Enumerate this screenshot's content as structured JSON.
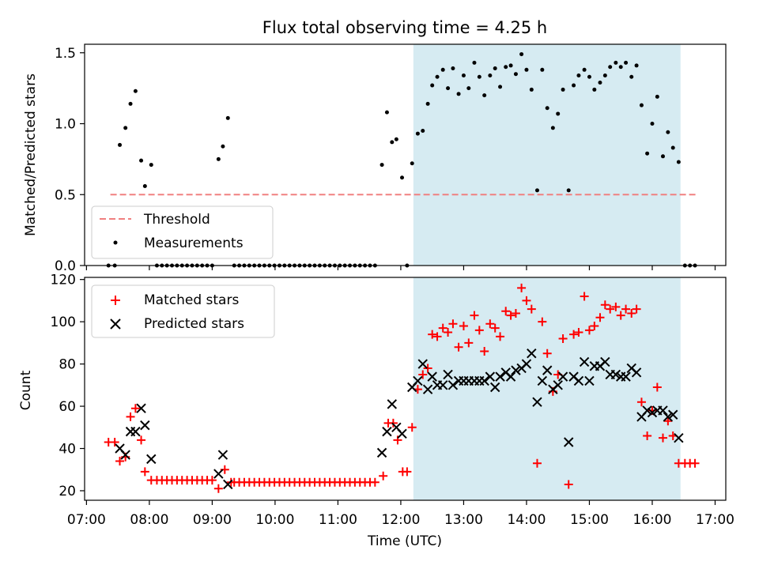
{
  "chart_data": {
    "title": "Flux total observing time = 4.25 h",
    "xlabel": "Time (UTC)",
    "x_unit": "hours UTC",
    "xlim": [
      6.97,
      17.17
    ],
    "xticks": [
      7,
      8,
      9,
      10,
      11,
      12,
      13,
      14,
      15,
      16,
      17
    ],
    "xtick_labels": [
      "07:00",
      "08:00",
      "09:00",
      "10:00",
      "11:00",
      "12:00",
      "13:00",
      "14:00",
      "15:00",
      "16:00",
      "17:00"
    ],
    "shaded_span": [
      12.2,
      16.45
    ],
    "top": {
      "type": "scatter",
      "ylabel": "Matched/Predicted stars",
      "ylim": [
        0,
        1.56
      ],
      "yticks": [
        0.0,
        0.5,
        1.0,
        1.5
      ],
      "ytick_labels": [
        "0.0",
        "0.5",
        "1.0",
        "1.5"
      ],
      "threshold": {
        "label": "Threshold",
        "value": 0.5,
        "x": [
          7.38,
          16.7
        ],
        "color": "#f08080"
      },
      "measurement_label": "Measurements",
      "legend_position": "lower-left",
      "measurements": [
        [
          7.35,
          0
        ],
        [
          7.45,
          0
        ],
        [
          7.53,
          0.85
        ],
        [
          7.62,
          0.97
        ],
        [
          7.7,
          1.14
        ],
        [
          7.78,
          1.23
        ],
        [
          7.87,
          0.74
        ],
        [
          7.93,
          0.56
        ],
        [
          8.03,
          0.71
        ],
        [
          8.12,
          0
        ],
        [
          8.2,
          0
        ],
        [
          8.28,
          0
        ],
        [
          8.36,
          0
        ],
        [
          8.44,
          0
        ],
        [
          8.52,
          0
        ],
        [
          8.6,
          0
        ],
        [
          8.68,
          0
        ],
        [
          8.76,
          0
        ],
        [
          8.84,
          0
        ],
        [
          8.92,
          0
        ],
        [
          9.0,
          0
        ],
        [
          9.1,
          0.75
        ],
        [
          9.17,
          0.84
        ],
        [
          9.25,
          1.04
        ],
        [
          9.35,
          0
        ],
        [
          9.43,
          0
        ],
        [
          9.51,
          0
        ],
        [
          9.59,
          0
        ],
        [
          9.67,
          0
        ],
        [
          9.75,
          0
        ],
        [
          9.83,
          0
        ],
        [
          9.91,
          0
        ],
        [
          9.99,
          0
        ],
        [
          10.07,
          0
        ],
        [
          10.15,
          0
        ],
        [
          10.23,
          0
        ],
        [
          10.31,
          0
        ],
        [
          10.39,
          0
        ],
        [
          10.47,
          0
        ],
        [
          10.55,
          0
        ],
        [
          10.63,
          0
        ],
        [
          10.71,
          0
        ],
        [
          10.79,
          0
        ],
        [
          10.87,
          0
        ],
        [
          10.95,
          0
        ],
        [
          11.03,
          0
        ],
        [
          11.11,
          0
        ],
        [
          11.19,
          0
        ],
        [
          11.27,
          0
        ],
        [
          11.35,
          0
        ],
        [
          11.43,
          0
        ],
        [
          11.51,
          0
        ],
        [
          11.59,
          0
        ],
        [
          11.7,
          0.71
        ],
        [
          11.78,
          1.08
        ],
        [
          11.86,
          0.87
        ],
        [
          11.93,
          0.89
        ],
        [
          12.02,
          0.62
        ],
        [
          12.1,
          0
        ],
        [
          12.18,
          0.72
        ],
        [
          12.27,
          0.93
        ],
        [
          12.35,
          0.95
        ],
        [
          12.43,
          1.14
        ],
        [
          12.5,
          1.27
        ],
        [
          12.58,
          1.33
        ],
        [
          12.67,
          1.38
        ],
        [
          12.75,
          1.25
        ],
        [
          12.83,
          1.39
        ],
        [
          12.92,
          1.21
        ],
        [
          13.0,
          1.34
        ],
        [
          13.08,
          1.25
        ],
        [
          13.17,
          1.43
        ],
        [
          13.25,
          1.33
        ],
        [
          13.33,
          1.2
        ],
        [
          13.42,
          1.34
        ],
        [
          13.5,
          1.39
        ],
        [
          13.58,
          1.26
        ],
        [
          13.67,
          1.4
        ],
        [
          13.75,
          1.41
        ],
        [
          13.83,
          1.35
        ],
        [
          13.92,
          1.49
        ],
        [
          14.0,
          1.38
        ],
        [
          14.08,
          1.24
        ],
        [
          14.17,
          0.53
        ],
        [
          14.25,
          1.38
        ],
        [
          14.33,
          1.11
        ],
        [
          14.42,
          0.97
        ],
        [
          14.5,
          1.07
        ],
        [
          14.58,
          1.24
        ],
        [
          14.67,
          0.53
        ],
        [
          14.75,
          1.27
        ],
        [
          14.83,
          1.34
        ],
        [
          14.92,
          1.38
        ],
        [
          15.0,
          1.33
        ],
        [
          15.08,
          1.24
        ],
        [
          15.17,
          1.29
        ],
        [
          15.25,
          1.34
        ],
        [
          15.33,
          1.4
        ],
        [
          15.42,
          1.43
        ],
        [
          15.5,
          1.4
        ],
        [
          15.58,
          1.43
        ],
        [
          15.67,
          1.33
        ],
        [
          15.75,
          1.41
        ],
        [
          15.83,
          1.13
        ],
        [
          15.92,
          0.79
        ],
        [
          16.0,
          1.0
        ],
        [
          16.08,
          1.19
        ],
        [
          16.17,
          0.77
        ],
        [
          16.25,
          0.94
        ],
        [
          16.33,
          0.83
        ],
        [
          16.42,
          0.73
        ],
        [
          16.52,
          0
        ],
        [
          16.6,
          0
        ],
        [
          16.68,
          0
        ]
      ]
    },
    "bottom": {
      "type": "scatter",
      "ylabel": "Count",
      "ylim": [
        15.5,
        121
      ],
      "yticks": [
        20,
        40,
        60,
        80,
        100,
        120
      ],
      "ytick_labels": [
        "20",
        "40",
        "60",
        "80",
        "100",
        "120"
      ],
      "legend_position": "upper-left",
      "matched": {
        "label": "Matched stars",
        "color": "#ff0000",
        "marker": "+",
        "points": [
          [
            7.35,
            43
          ],
          [
            7.45,
            43
          ],
          [
            7.53,
            34
          ],
          [
            7.62,
            36
          ],
          [
            7.7,
            55
          ],
          [
            7.78,
            59
          ],
          [
            7.87,
            44
          ],
          [
            7.93,
            29
          ],
          [
            8.03,
            25
          ],
          [
            8.12,
            25
          ],
          [
            8.2,
            25
          ],
          [
            8.28,
            25
          ],
          [
            8.36,
            25
          ],
          [
            8.44,
            25
          ],
          [
            8.52,
            25
          ],
          [
            8.6,
            25
          ],
          [
            8.68,
            25
          ],
          [
            8.76,
            25
          ],
          [
            8.84,
            25
          ],
          [
            8.92,
            25
          ],
          [
            9.0,
            25
          ],
          [
            9.1,
            21
          ],
          [
            9.2,
            30
          ],
          [
            9.3,
            24
          ],
          [
            9.35,
            24
          ],
          [
            9.43,
            24
          ],
          [
            9.51,
            24
          ],
          [
            9.59,
            24
          ],
          [
            9.67,
            24
          ],
          [
            9.75,
            24
          ],
          [
            9.83,
            24
          ],
          [
            9.91,
            24
          ],
          [
            9.99,
            24
          ],
          [
            10.07,
            24
          ],
          [
            10.15,
            24
          ],
          [
            10.23,
            24
          ],
          [
            10.31,
            24
          ],
          [
            10.39,
            24
          ],
          [
            10.47,
            24
          ],
          [
            10.55,
            24
          ],
          [
            10.63,
            24
          ],
          [
            10.71,
            24
          ],
          [
            10.79,
            24
          ],
          [
            10.87,
            24
          ],
          [
            10.95,
            24
          ],
          [
            11.03,
            24
          ],
          [
            11.11,
            24
          ],
          [
            11.19,
            24
          ],
          [
            11.27,
            24
          ],
          [
            11.35,
            24
          ],
          [
            11.43,
            24
          ],
          [
            11.51,
            24
          ],
          [
            11.59,
            24
          ],
          [
            11.72,
            27
          ],
          [
            11.8,
            52
          ],
          [
            11.88,
            52
          ],
          [
            11.95,
            44
          ],
          [
            12.03,
            29
          ],
          [
            12.1,
            29
          ],
          [
            12.18,
            50
          ],
          [
            12.27,
            68
          ],
          [
            12.35,
            75
          ],
          [
            12.43,
            78
          ],
          [
            12.5,
            94
          ],
          [
            12.58,
            93
          ],
          [
            12.67,
            97
          ],
          [
            12.75,
            95
          ],
          [
            12.83,
            99
          ],
          [
            12.92,
            88
          ],
          [
            13.0,
            98
          ],
          [
            13.08,
            90
          ],
          [
            13.17,
            103
          ],
          [
            13.25,
            96
          ],
          [
            13.33,
            86
          ],
          [
            13.42,
            99
          ],
          [
            13.5,
            97
          ],
          [
            13.58,
            93
          ],
          [
            13.67,
            105
          ],
          [
            13.75,
            103
          ],
          [
            13.83,
            104
          ],
          [
            13.92,
            116
          ],
          [
            14.0,
            110
          ],
          [
            14.08,
            106
          ],
          [
            14.17,
            33
          ],
          [
            14.25,
            100
          ],
          [
            14.33,
            85
          ],
          [
            14.42,
            67
          ],
          [
            14.5,
            75
          ],
          [
            14.58,
            92
          ],
          [
            14.67,
            23
          ],
          [
            14.75,
            94
          ],
          [
            14.83,
            95
          ],
          [
            14.92,
            112
          ],
          [
            15.0,
            96
          ],
          [
            15.08,
            98
          ],
          [
            15.17,
            102
          ],
          [
            15.25,
            108
          ],
          [
            15.33,
            106
          ],
          [
            15.42,
            107
          ],
          [
            15.5,
            103
          ],
          [
            15.58,
            106
          ],
          [
            15.67,
            104
          ],
          [
            15.75,
            106
          ],
          [
            15.83,
            62
          ],
          [
            15.92,
            46
          ],
          [
            16.0,
            58
          ],
          [
            16.08,
            69
          ],
          [
            16.17,
            45
          ],
          [
            16.25,
            53
          ],
          [
            16.33,
            46
          ],
          [
            16.42,
            33
          ],
          [
            16.52,
            33
          ],
          [
            16.6,
            33
          ],
          [
            16.68,
            33
          ]
        ]
      },
      "predicted": {
        "label": "Predicted stars",
        "color": "#000000",
        "marker": "x",
        "points": [
          [
            7.53,
            40
          ],
          [
            7.62,
            37
          ],
          [
            7.7,
            48
          ],
          [
            7.78,
            48
          ],
          [
            7.87,
            59
          ],
          [
            7.93,
            51
          ],
          [
            8.03,
            35
          ],
          [
            9.1,
            28
          ],
          [
            9.17,
            37
          ],
          [
            9.25,
            23
          ],
          [
            11.7,
            38
          ],
          [
            11.78,
            48
          ],
          [
            11.86,
            61
          ],
          [
            11.93,
            50
          ],
          [
            12.02,
            47
          ],
          [
            12.18,
            69
          ],
          [
            12.27,
            72
          ],
          [
            12.35,
            80
          ],
          [
            12.43,
            68
          ],
          [
            12.5,
            74
          ],
          [
            12.58,
            70
          ],
          [
            12.67,
            70
          ],
          [
            12.75,
            75
          ],
          [
            12.83,
            70
          ],
          [
            12.92,
            72
          ],
          [
            13.0,
            72
          ],
          [
            13.08,
            72
          ],
          [
            13.17,
            72
          ],
          [
            13.25,
            72
          ],
          [
            13.33,
            72
          ],
          [
            13.42,
            74
          ],
          [
            13.5,
            69
          ],
          [
            13.58,
            74
          ],
          [
            13.67,
            76
          ],
          [
            13.75,
            74
          ],
          [
            13.83,
            77
          ],
          [
            13.92,
            78
          ],
          [
            14.0,
            80
          ],
          [
            14.08,
            85
          ],
          [
            14.17,
            62
          ],
          [
            14.25,
            72
          ],
          [
            14.33,
            77
          ],
          [
            14.42,
            68
          ],
          [
            14.5,
            70
          ],
          [
            14.58,
            74
          ],
          [
            14.67,
            43
          ],
          [
            14.75,
            74
          ],
          [
            14.83,
            72
          ],
          [
            14.92,
            81
          ],
          [
            15.0,
            72
          ],
          [
            15.08,
            79
          ],
          [
            15.17,
            79
          ],
          [
            15.25,
            81
          ],
          [
            15.33,
            75
          ],
          [
            15.42,
            75
          ],
          [
            15.5,
            74
          ],
          [
            15.58,
            74
          ],
          [
            15.67,
            78
          ],
          [
            15.75,
            76
          ],
          [
            15.83,
            55
          ],
          [
            15.92,
            58
          ],
          [
            16.0,
            57
          ],
          [
            16.08,
            58
          ],
          [
            16.17,
            58
          ],
          [
            16.25,
            55
          ],
          [
            16.33,
            56
          ],
          [
            16.42,
            45
          ]
        ]
      }
    }
  }
}
